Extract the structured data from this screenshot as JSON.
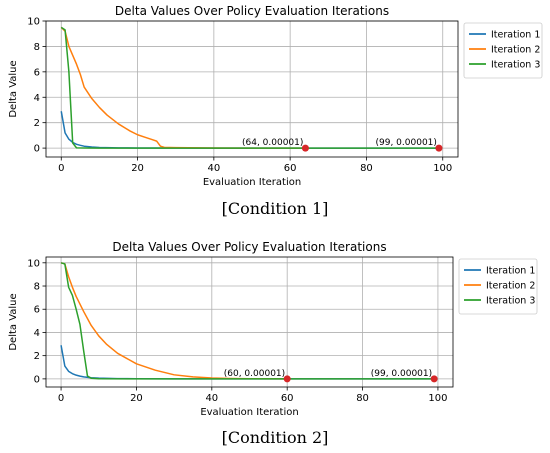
{
  "chart_data": [
    {
      "type": "line",
      "title": "Delta Values Over Policy Evaluation Iterations",
      "xlabel": "Evaluation Iteration",
      "ylabel": "Delta Value",
      "xlim": [
        -4,
        104
      ],
      "ylim": [
        -0.7,
        10
      ],
      "xticks": [
        0,
        20,
        40,
        60,
        80,
        100
      ],
      "yticks": [
        0,
        2,
        4,
        6,
        8,
        10
      ],
      "grid": true,
      "legend": "outside-right",
      "caption": "[Condition 1]",
      "series": [
        {
          "name": "Iteration 1",
          "color": "#1f77b4",
          "x": [
            0,
            1,
            2,
            3,
            4,
            5,
            6,
            8,
            10,
            15,
            20,
            30,
            40,
            60,
            80,
            99
          ],
          "y": [
            2.9,
            1.2,
            0.7,
            0.45,
            0.3,
            0.22,
            0.15,
            0.09,
            0.05,
            0.02,
            0.01,
            0.003,
            0.001,
            0.0001,
            3e-05,
            1e-05
          ]
        },
        {
          "name": "Iteration 2",
          "color": "#ff7f0e",
          "x": [
            0,
            1,
            2,
            3,
            4,
            5,
            6,
            8,
            10,
            12,
            15,
            18,
            20,
            22,
            24,
            25,
            26,
            27,
            30,
            40,
            50,
            64
          ],
          "y": [
            9.5,
            9.2,
            8.0,
            7.3,
            6.6,
            5.8,
            4.8,
            3.9,
            3.2,
            2.6,
            1.9,
            1.35,
            1.05,
            0.85,
            0.65,
            0.55,
            0.15,
            0.06,
            0.04,
            0.01,
            0.002,
            1e-05
          ]
        },
        {
          "name": "Iteration 3",
          "color": "#2ca02c",
          "x": [
            0,
            1,
            2,
            3,
            4,
            6,
            10,
            20,
            40,
            60,
            80,
            99
          ],
          "y": [
            9.5,
            9.3,
            6.0,
            0.4,
            0.02,
            0.005,
            0.001,
            0.0002,
            5e-05,
            2e-05,
            1e-05,
            1e-05
          ]
        }
      ],
      "annotations": [
        {
          "x": 64,
          "y": 1e-05,
          "text": "(64, 0.00001)"
        },
        {
          "x": 99,
          "y": 1e-05,
          "text": "(99, 0.00001)"
        }
      ]
    },
    {
      "type": "line",
      "title": "Delta Values Over Policy Evaluation Iterations",
      "xlabel": "Evaluation Iteration",
      "ylabel": "Delta Value",
      "xlim": [
        -4,
        104
      ],
      "ylim": [
        -0.7,
        10.5
      ],
      "xticks": [
        0,
        20,
        40,
        60,
        80,
        100
      ],
      "yticks": [
        0,
        2,
        4,
        6,
        8,
        10
      ],
      "grid": true,
      "legend": "outside-right",
      "caption": "[Condition 2]",
      "series": [
        {
          "name": "Iteration 1",
          "color": "#1f77b4",
          "x": [
            0,
            1,
            2,
            3,
            4,
            5,
            6,
            8,
            10,
            15,
            20,
            30,
            40,
            60,
            80,
            99
          ],
          "y": [
            2.9,
            1.1,
            0.65,
            0.45,
            0.32,
            0.24,
            0.17,
            0.1,
            0.06,
            0.025,
            0.01,
            0.003,
            0.001,
            0.0001,
            3e-05,
            1e-05
          ]
        },
        {
          "name": "Iteration 2",
          "color": "#ff7f0e",
          "x": [
            0,
            1,
            2,
            3,
            4,
            6,
            8,
            10,
            12,
            15,
            20,
            25,
            30,
            35,
            40,
            45,
            50,
            60
          ],
          "y": [
            10.0,
            9.9,
            8.8,
            7.9,
            7.1,
            5.8,
            4.6,
            3.7,
            3.0,
            2.2,
            1.3,
            0.75,
            0.35,
            0.17,
            0.08,
            0.03,
            0.01,
            1e-05
          ]
        },
        {
          "name": "Iteration 3",
          "color": "#2ca02c",
          "x": [
            0,
            1,
            2,
            3,
            4,
            5,
            6,
            7,
            8,
            10,
            20,
            40,
            60,
            80,
            99
          ],
          "y": [
            10.0,
            9.9,
            7.9,
            7.2,
            6.0,
            4.7,
            2.4,
            0.25,
            0.05,
            0.01,
            0.001,
            0.0001,
            3e-05,
            1e-05,
            1e-05
          ]
        }
      ],
      "annotations": [
        {
          "x": 60,
          "y": 1e-05,
          "text": "(60, 0.00001)"
        },
        {
          "x": 99,
          "y": 1e-05,
          "text": "(99, 0.00001)"
        }
      ]
    }
  ]
}
